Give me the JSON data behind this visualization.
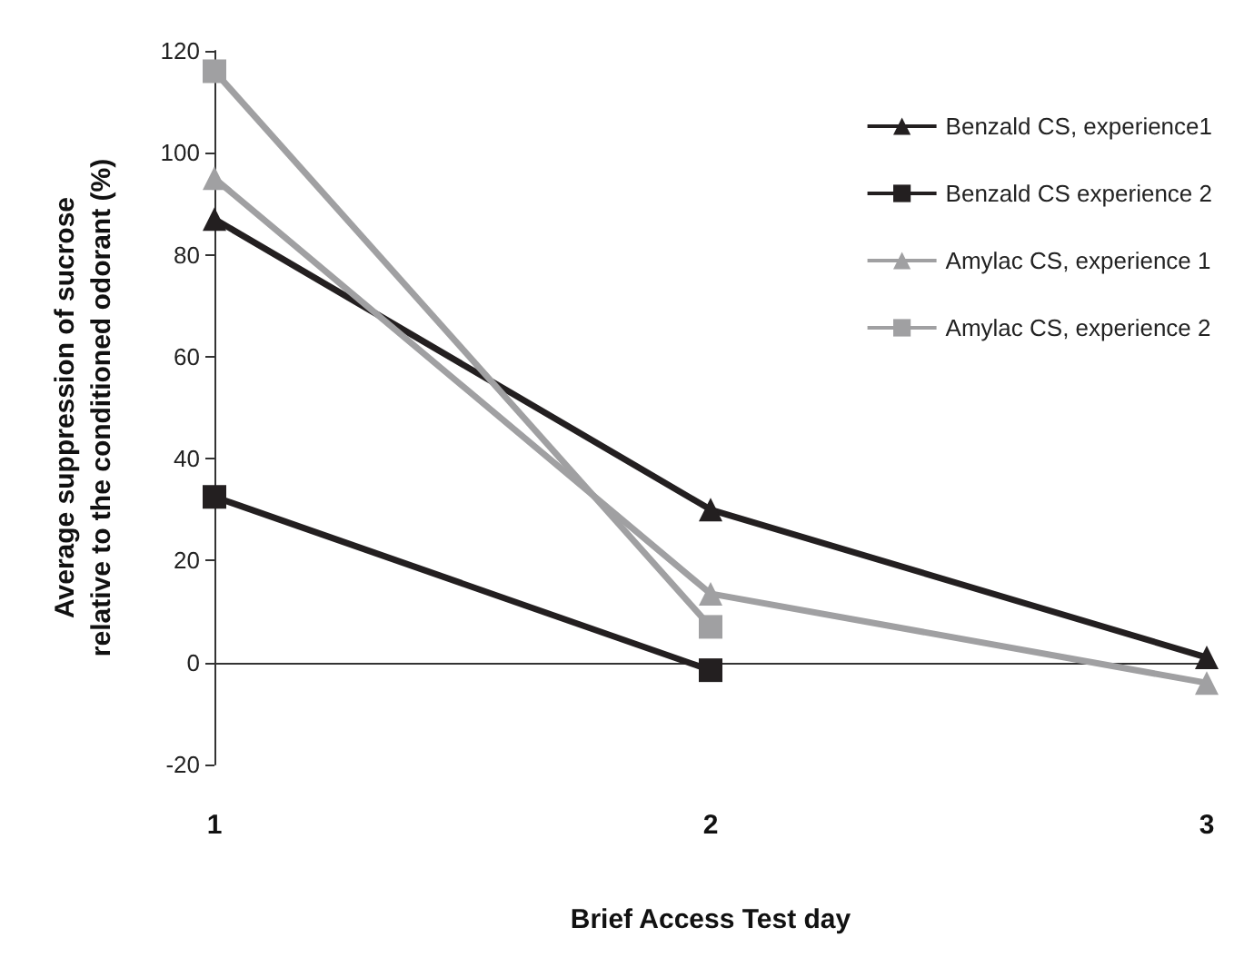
{
  "chart_data": {
    "type": "line",
    "xlabel": "Brief Access Test day",
    "ylabel": "Average suppression of sucrose\nrelative to the conditioned odorant (%)",
    "x": [
      1,
      2,
      3
    ],
    "xlim": [
      1,
      3
    ],
    "xticks": [
      1,
      2,
      3
    ],
    "series": [
      {
        "name": "Benzald CS, experience1",
        "color": "#231f20",
        "marker": "triangle",
        "values": [
          87,
          30,
          1
        ]
      },
      {
        "name": "Benzald CS experience 2",
        "color": "#231f20",
        "marker": "square",
        "values": [
          32.5,
          -1.5,
          null
        ]
      },
      {
        "name": "Amylac CS, experience 1",
        "color": "#a0a0a2",
        "marker": "triangle",
        "values": [
          95,
          13.5,
          -4
        ]
      },
      {
        "name": "Amylac CS, experience 2",
        "color": "#a0a0a2",
        "marker": "square",
        "values": [
          116,
          7,
          null
        ]
      }
    ],
    "ylim": [
      -20,
      120
    ],
    "yticks": [
      -20,
      0,
      20,
      40,
      60,
      80,
      100,
      120
    ],
    "legend": "top right"
  }
}
